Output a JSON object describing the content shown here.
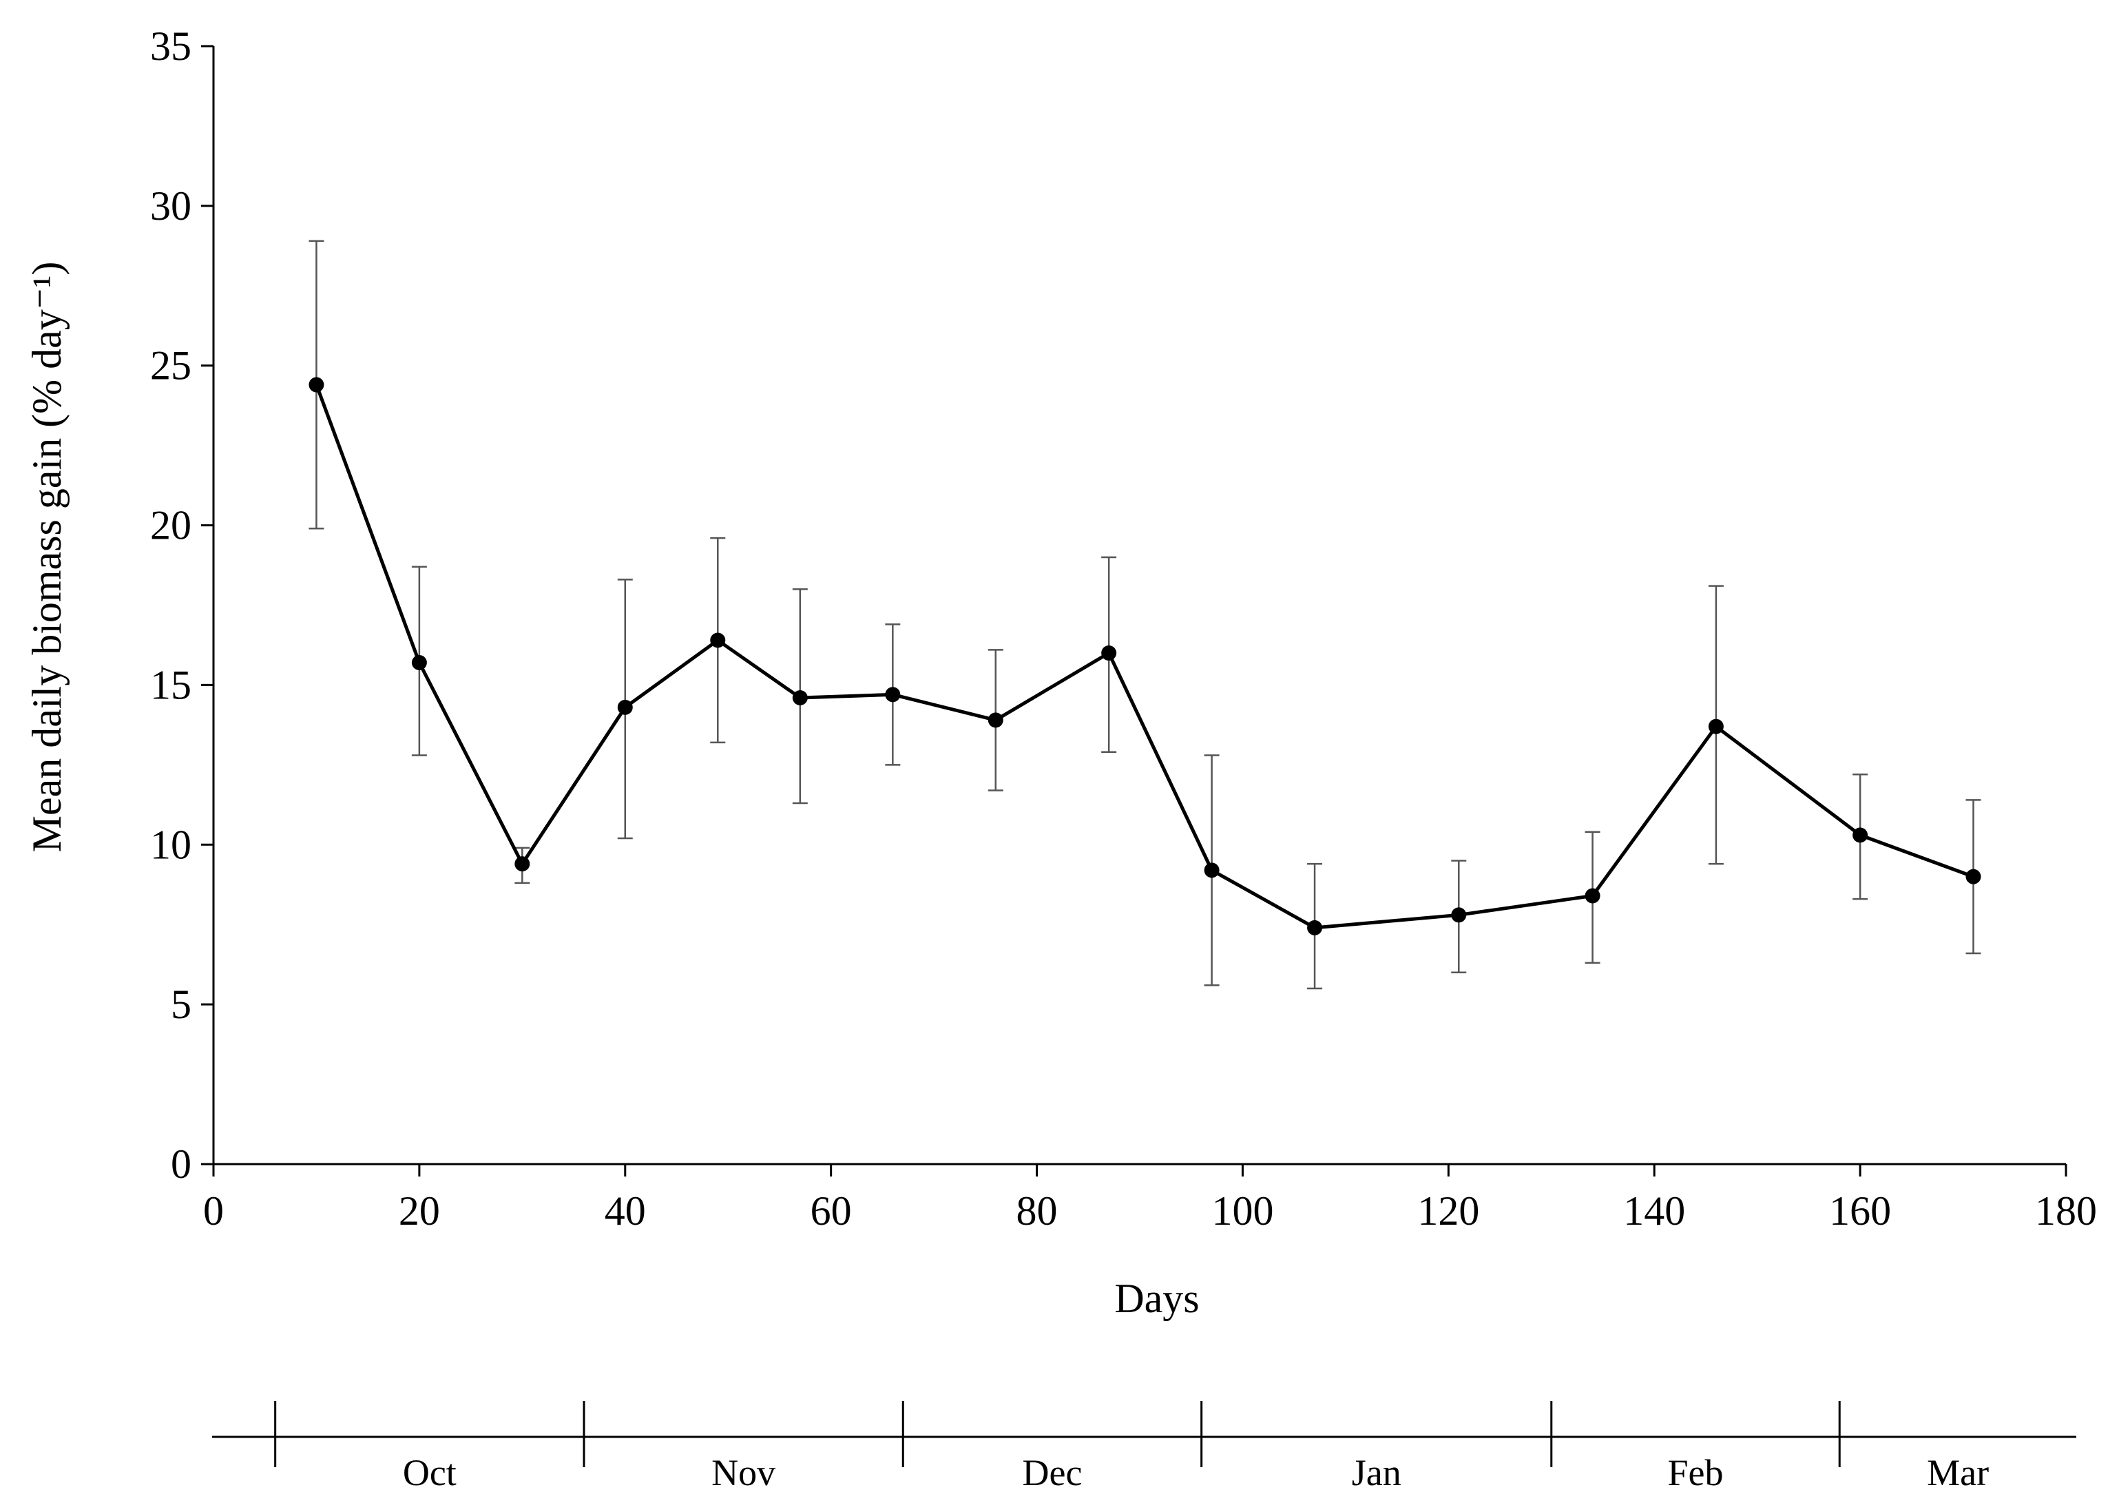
{
  "chart_data": {
    "type": "line",
    "xlabel": "Days",
    "ylabel": "Mean daily biomass gain (% day⁻¹)",
    "xlim": [
      0,
      180
    ],
    "ylim": [
      0,
      35
    ],
    "xticks": [
      "0",
      "20",
      "40",
      "60",
      "80",
      "100",
      "120",
      "140",
      "160",
      "180"
    ],
    "yticks": [
      "0",
      "5",
      "10",
      "15",
      "20",
      "25",
      "30",
      "35"
    ],
    "grid": false,
    "legend": "none",
    "series": [
      {
        "x": [
          10,
          20,
          30,
          40,
          49,
          57,
          66,
          76,
          87,
          97,
          107,
          121,
          134,
          146,
          160,
          171
        ],
        "y": [
          24.4,
          15.7,
          9.4,
          14.3,
          16.4,
          14.6,
          14.7,
          13.9,
          16.0,
          9.2,
          7.4,
          7.8,
          8.4,
          13.7,
          10.3,
          9.0
        ],
        "err_upper": [
          28.9,
          18.7,
          9.9,
          18.3,
          19.6,
          18.0,
          16.9,
          16.1,
          19.0,
          12.8,
          9.4,
          9.5,
          10.4,
          18.1,
          12.2,
          11.4
        ],
        "err_lower": [
          19.9,
          12.8,
          8.8,
          10.2,
          13.2,
          11.3,
          12.5,
          11.7,
          12.9,
          5.6,
          5.5,
          6.0,
          6.3,
          9.4,
          8.3,
          6.6
        ]
      }
    ],
    "months": [
      "Oct",
      "Nov",
      "Dec",
      "Jan",
      "Feb",
      "Mar"
    ],
    "month_boundaries": [
      6,
      36,
      67,
      96,
      130,
      158
    ],
    "month_axis_end": 181,
    "color": "#000000"
  }
}
